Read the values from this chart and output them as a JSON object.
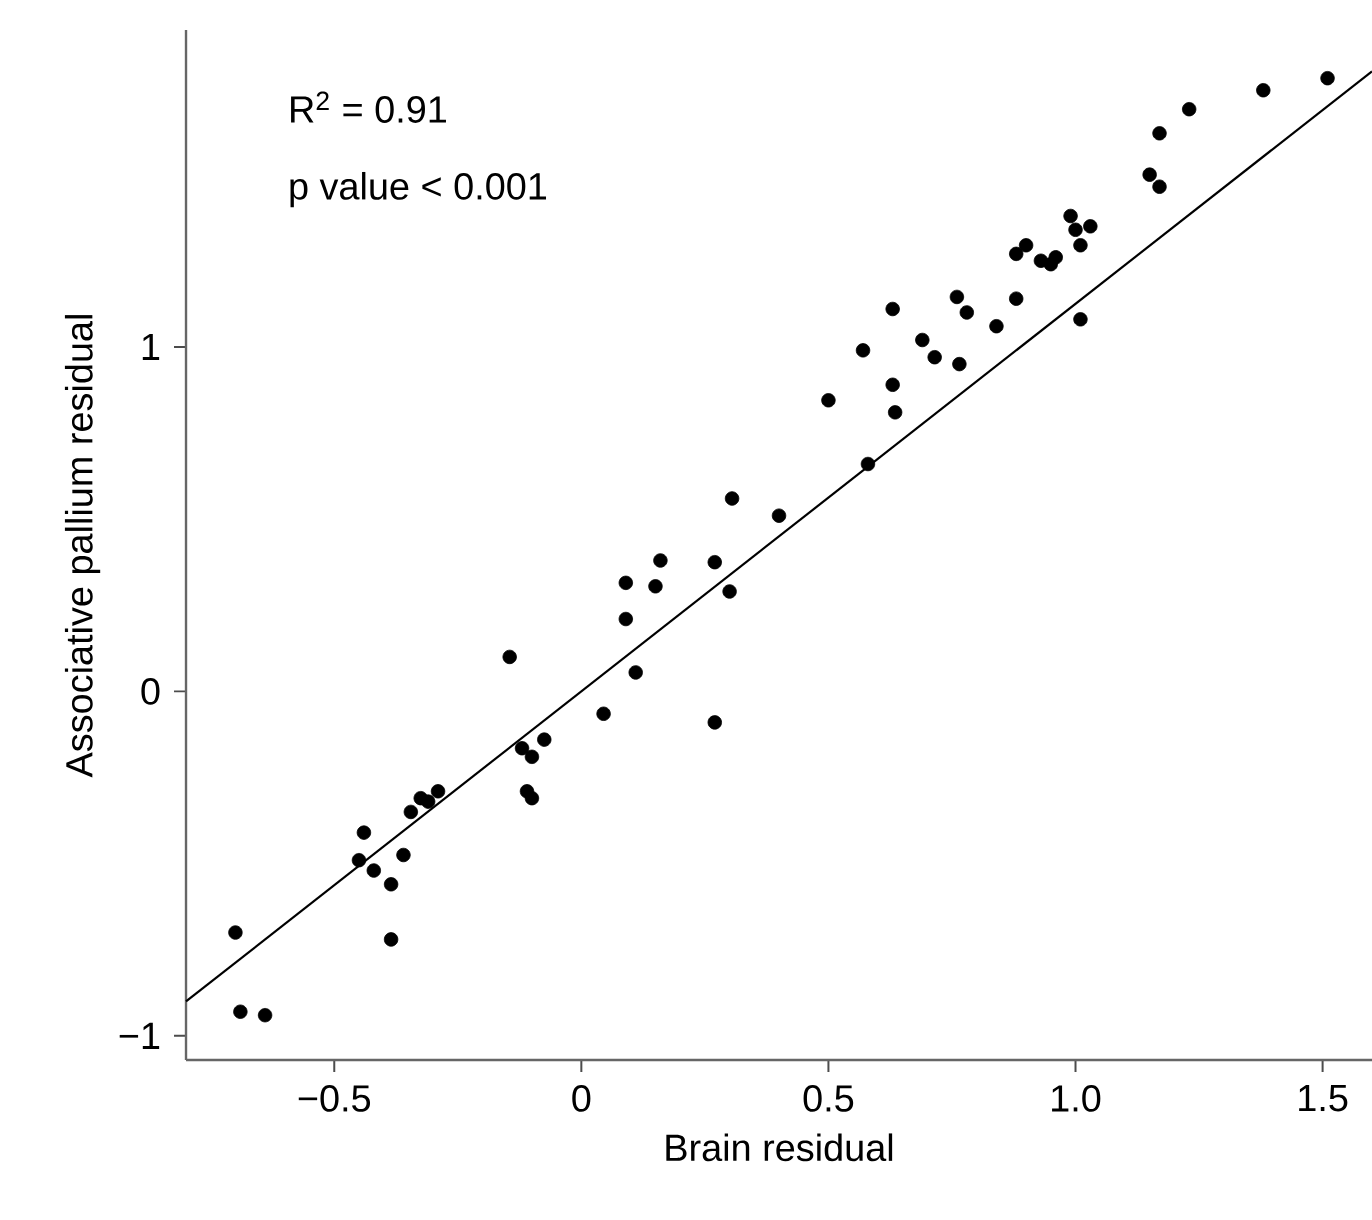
{
  "chart_data": {
    "type": "scatter",
    "xlabel": "Brain residual",
    "ylabel": "Associative pallium residual",
    "annotations": [
      "R$^{2}$ = 0.91",
      "p value < 0.001"
    ],
    "xlim": [
      -0.8,
      1.6
    ],
    "ylim": [
      -1.07,
      1.92
    ],
    "xticks": [
      {
        "value": -0.5,
        "label": "−0.5"
      },
      0,
      0.5,
      {
        "value": 1,
        "label": "1.0"
      },
      1.5
    ],
    "yticks": [
      {
        "value": -1,
        "label": "−1"
      },
      0,
      1
    ],
    "series": [
      {
        "marker": "circle",
        "color": "#000000",
        "x": [
          -0.7,
          -0.69,
          -0.64,
          -0.44,
          -0.45,
          -0.42,
          -0.385,
          -0.36,
          -0.385,
          -0.345,
          -0.325,
          -0.31,
          -0.29,
          -0.145,
          -0.12,
          -0.1,
          -0.075,
          -0.11,
          -0.1,
          0.045,
          0.27,
          0.09,
          0.15,
          0.09,
          0.11,
          0.3,
          0.16,
          0.27,
          0.305,
          0.4,
          0.58,
          0.5,
          0.57,
          0.63,
          0.635,
          0.63,
          0.69,
          0.715,
          0.765,
          0.76,
          0.78,
          0.84,
          0.88,
          1.01,
          0.88,
          0.9,
          0.93,
          0.95,
          0.96,
          0.99,
          1.0,
          1.01,
          1.03,
          1.15,
          1.17,
          1.17,
          1.23,
          1.38,
          1.51
        ],
        "values": [
          -0.7,
          -0.93,
          -0.94,
          -0.41,
          -0.49,
          -0.52,
          -0.56,
          -0.475,
          -0.72,
          -0.35,
          -0.31,
          -0.32,
          -0.29,
          0.1,
          -0.165,
          -0.19,
          -0.14,
          -0.29,
          -0.31,
          -0.065,
          -0.09,
          0.315,
          0.305,
          0.21,
          0.055,
          0.29,
          0.38,
          0.375,
          0.56,
          0.51,
          0.66,
          0.845,
          0.99,
          0.89,
          0.81,
          1.11,
          1.02,
          0.97,
          0.95,
          1.145,
          1.1,
          1.06,
          1.14,
          1.08,
          1.27,
          1.295,
          1.25,
          1.24,
          1.26,
          1.38,
          1.34,
          1.295,
          1.35,
          1.5,
          1.465,
          1.62,
          1.69,
          1.745,
          1.78
        ]
      },
      {
        "type": "line",
        "marker": "none",
        "color": "#000000",
        "x": [
          -0.8,
          1.6
        ],
        "values": [
          -0.9,
          1.8
        ]
      }
    ]
  }
}
